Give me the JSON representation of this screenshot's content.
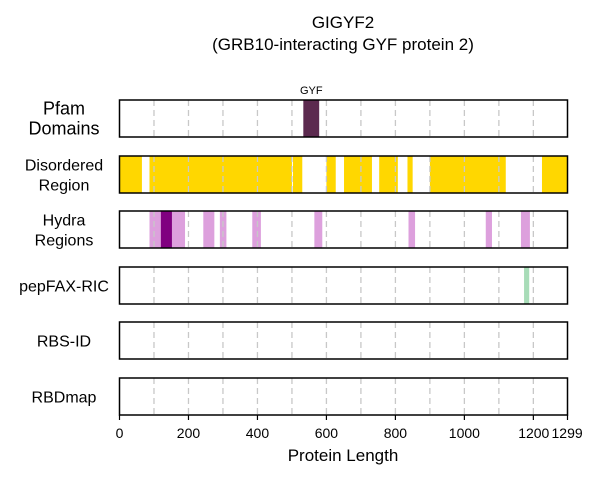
{
  "chart_data": {
    "type": "track",
    "title": "GIGYF2",
    "subtitle": "(GRB10-interacting GYF protein 2)",
    "xlabel": "Protein Length",
    "xlim": [
      0,
      1299
    ],
    "xticks": [
      0,
      200,
      400,
      600,
      800,
      1000,
      1200,
      1299
    ],
    "grid_lines": [
      100,
      200,
      300,
      400,
      500,
      600,
      700,
      800,
      900,
      1000,
      1100,
      1200
    ],
    "tracks": [
      {
        "name": "Pfam\nDomains",
        "lines": [
          "Pfam",
          "Domains"
        ],
        "segments": [
          {
            "start": 533,
            "end": 579,
            "color": "#5c2a4f",
            "opacity": 1,
            "label": "GYF"
          }
        ]
      },
      {
        "name": "Disordered\nRegion",
        "lines": [
          "Disordered",
          "Region"
        ],
        "segments": [
          {
            "start": 0,
            "end": 65,
            "color": "#ffd700",
            "opacity": 1
          },
          {
            "start": 87,
            "end": 500,
            "color": "#ffd700",
            "opacity": 1
          },
          {
            "start": 503,
            "end": 530,
            "color": "#ffd700",
            "opacity": 1
          },
          {
            "start": 600,
            "end": 627,
            "color": "#ffd700",
            "opacity": 1
          },
          {
            "start": 651,
            "end": 732,
            "color": "#ffd700",
            "opacity": 1
          },
          {
            "start": 753,
            "end": 807,
            "color": "#ffd700",
            "opacity": 1
          },
          {
            "start": 835,
            "end": 850,
            "color": "#ffd700",
            "opacity": 1
          },
          {
            "start": 900,
            "end": 1120,
            "color": "#ffd700",
            "opacity": 1
          },
          {
            "start": 1225,
            "end": 1299,
            "color": "#ffd700",
            "opacity": 1
          }
        ]
      },
      {
        "name": "Hydra\nRegions",
        "lines": [
          "Hydra",
          "Regions"
        ],
        "segments": [
          {
            "start": 87,
            "end": 190,
            "color": "#dda0dd",
            "opacity": 1
          },
          {
            "start": 120,
            "end": 152,
            "color": "#800080",
            "opacity": 1
          },
          {
            "start": 243,
            "end": 275,
            "color": "#dda0dd",
            "opacity": 1
          },
          {
            "start": 291,
            "end": 310,
            "color": "#dda0dd",
            "opacity": 1
          },
          {
            "start": 385,
            "end": 410,
            "color": "#dda0dd",
            "opacity": 1
          },
          {
            "start": 565,
            "end": 588,
            "color": "#dda0dd",
            "opacity": 1
          },
          {
            "start": 838,
            "end": 857,
            "color": "#dda0dd",
            "opacity": 1
          },
          {
            "start": 1062,
            "end": 1080,
            "color": "#dda0dd",
            "opacity": 1
          },
          {
            "start": 1164,
            "end": 1190,
            "color": "#dda0dd",
            "opacity": 1
          }
        ]
      },
      {
        "name": "pepFAX-RIC",
        "lines": [
          "pepFAX-RIC"
        ],
        "segments": [
          {
            "start": 1173,
            "end": 1188,
            "color": "#a8dcb8",
            "opacity": 1
          }
        ]
      },
      {
        "name": "RBS-ID",
        "lines": [
          "RBS-ID"
        ],
        "segments": []
      },
      {
        "name": "RBDmap",
        "lines": [
          "RBDmap"
        ],
        "segments": []
      }
    ]
  }
}
